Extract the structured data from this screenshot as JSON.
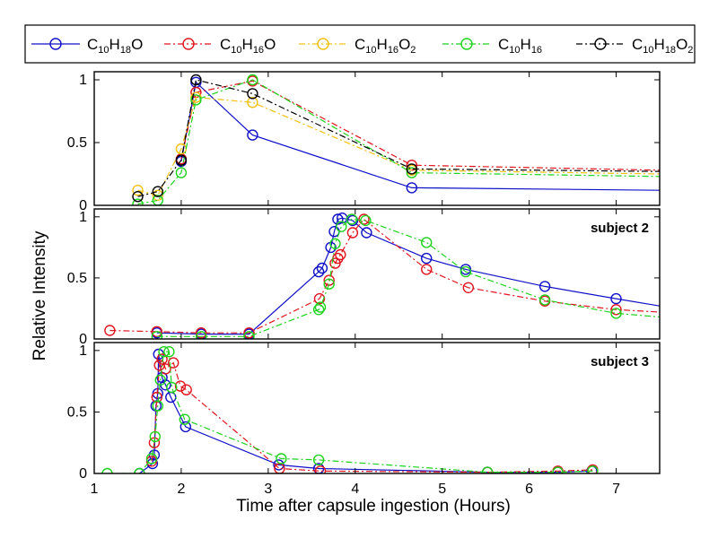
{
  "chart_data": {
    "type": "line",
    "xlabel": "Time after capsule ingestion (Hours)",
    "ylabel": "Relative Intensity",
    "xlim": [
      1,
      7.5
    ],
    "x_ticks": [
      1,
      2,
      3,
      4,
      5,
      6,
      7
    ],
    "ylim": [
      0,
      1.05
    ],
    "y_ticks": [
      0,
      0.5,
      1
    ],
    "grid": false,
    "legend_position": "top",
    "series_styles": [
      {
        "name": "C10H18O",
        "base": "C",
        "subs": [
          [
            "",
            "C"
          ],
          [
            "10",
            "sub"
          ],
          [
            "H",
            "n"
          ],
          [
            "18",
            "sub"
          ],
          [
            "O",
            "n"
          ]
        ],
        "color": "#1010c8",
        "dash": "solid"
      },
      {
        "name": "C10H16O",
        "subs": [
          [
            "C",
            "n"
          ],
          [
            "10",
            "sub"
          ],
          [
            "H",
            "n"
          ],
          [
            "16",
            "sub"
          ],
          [
            "O",
            "n"
          ]
        ],
        "color": "#e0141e",
        "dash": "dashdot"
      },
      {
        "name": "C10H16O2",
        "subs": [
          [
            "C",
            "n"
          ],
          [
            "10",
            "sub"
          ],
          [
            "H",
            "n"
          ],
          [
            "16",
            "sub"
          ],
          [
            "O",
            "n"
          ],
          [
            "2",
            "sub"
          ]
        ],
        "color": "#f2c010",
        "dash": "dashdot"
      },
      {
        "name": "C10H16",
        "subs": [
          [
            "C",
            "n"
          ],
          [
            "10",
            "sub"
          ],
          [
            "H",
            "n"
          ],
          [
            "16",
            "sub"
          ]
        ],
        "color": "#1ed21e",
        "dash": "dashdot"
      },
      {
        "name": "C10H18O2",
        "subs": [
          [
            "C",
            "n"
          ],
          [
            "10",
            "sub"
          ],
          [
            "H",
            "n"
          ],
          [
            "18",
            "sub"
          ],
          [
            "O",
            "n"
          ],
          [
            "2",
            "sub"
          ]
        ],
        "color": "#000000",
        "dash": "dashdot"
      }
    ],
    "panels": [
      {
        "annotation": "",
        "series": [
          {
            "name": "C10H18O",
            "points": [
              [
                2.0,
                0.35
              ],
              [
                2.17,
                0.98
              ],
              [
                2.82,
                0.56
              ],
              [
                4.65,
                0.14
              ],
              [
                7.5,
                0.12
              ]
            ]
          },
          {
            "name": "C10H16O",
            "points": [
              [
                2.0,
                0.37
              ],
              [
                2.17,
                0.9
              ],
              [
                2.82,
                0.99
              ],
              [
                4.65,
                0.32
              ],
              [
                7.5,
                0.28
              ]
            ]
          },
          {
            "name": "C10H16O2",
            "points": [
              [
                1.5,
                0.12
              ],
              [
                1.73,
                0.08
              ],
              [
                2.0,
                0.45
              ],
              [
                2.17,
                0.86
              ],
              [
                2.82,
                0.82
              ],
              [
                4.65,
                0.28
              ],
              [
                7.5,
                0.25
              ]
            ]
          },
          {
            "name": "C10H16",
            "points": [
              [
                1.5,
                0.01
              ],
              [
                1.73,
                0.04
              ],
              [
                2.0,
                0.26
              ],
              [
                2.17,
                0.84
              ],
              [
                2.82,
                1.0
              ],
              [
                4.65,
                0.26
              ],
              [
                7.5,
                0.23
              ]
            ]
          },
          {
            "name": "C10H18O2",
            "points": [
              [
                1.5,
                0.07
              ],
              [
                1.73,
                0.11
              ],
              [
                2.0,
                0.36
              ],
              [
                2.17,
                1.0
              ],
              [
                2.82,
                0.89
              ],
              [
                4.65,
                0.29
              ],
              [
                7.5,
                0.27
              ]
            ]
          }
        ]
      },
      {
        "annotation": "subject 2",
        "series": [
          {
            "name": "C10H18O",
            "points": [
              [
                1.72,
                0.05
              ],
              [
                2.23,
                0.04
              ],
              [
                2.78,
                0.04
              ],
              [
                3.58,
                0.55
              ],
              [
                3.62,
                0.58
              ],
              [
                3.72,
                0.75
              ],
              [
                3.76,
                0.88
              ],
              [
                3.8,
                0.98
              ],
              [
                3.85,
                0.99
              ],
              [
                3.97,
                0.97
              ],
              [
                4.13,
                0.87
              ],
              [
                4.82,
                0.66
              ],
              [
                5.27,
                0.57
              ],
              [
                6.18,
                0.43
              ],
              [
                7.0,
                0.33
              ],
              [
                7.5,
                0.27
              ]
            ]
          },
          {
            "name": "C10H16O",
            "points": [
              [
                1.18,
                0.07
              ],
              [
                1.72,
                0.06
              ],
              [
                2.23,
                0.05
              ],
              [
                2.78,
                0.05
              ],
              [
                3.59,
                0.33
              ],
              [
                3.7,
                0.48
              ],
              [
                3.77,
                0.62
              ],
              [
                3.8,
                0.66
              ],
              [
                3.83,
                0.69
              ],
              [
                3.97,
                0.87
              ],
              [
                4.1,
                0.98
              ],
              [
                4.82,
                0.57
              ],
              [
                5.3,
                0.42
              ],
              [
                6.18,
                0.31
              ],
              [
                7.0,
                0.24
              ],
              [
                7.5,
                0.22
              ]
            ]
          },
          {
            "name": "C10H16",
            "points": [
              [
                1.72,
                0.02
              ],
              [
                2.23,
                0.02
              ],
              [
                2.78,
                0.02
              ],
              [
                3.58,
                0.24
              ],
              [
                3.6,
                0.26
              ],
              [
                3.7,
                0.45
              ],
              [
                3.77,
                0.78
              ],
              [
                3.84,
                0.92
              ],
              [
                3.96,
                0.98
              ],
              [
                4.12,
                0.97
              ],
              [
                4.82,
                0.79
              ],
              [
                5.27,
                0.55
              ],
              [
                6.18,
                0.32
              ],
              [
                7.0,
                0.21
              ],
              [
                7.5,
                0.18
              ]
            ]
          }
        ]
      },
      {
        "annotation": "subject 3",
        "series": [
          {
            "name": "C10H18O",
            "points": [
              [
                1.52,
                0.0
              ],
              [
                1.67,
                0.08
              ],
              [
                1.69,
                0.15
              ],
              [
                1.71,
                0.55
              ],
              [
                1.73,
                0.65
              ],
              [
                1.74,
                0.97
              ],
              [
                1.78,
                0.78
              ],
              [
                1.82,
                0.72
              ],
              [
                1.88,
                0.62
              ],
              [
                2.05,
                0.38
              ],
              [
                3.12,
                0.07
              ],
              [
                3.58,
                0.04
              ],
              [
                5.52,
                0.01
              ],
              [
                6.33,
                0.01
              ],
              [
                6.72,
                0.02
              ]
            ]
          },
          {
            "name": "C10H16O",
            "points": [
              [
                1.66,
                0.1
              ],
              [
                1.69,
                0.25
              ],
              [
                1.72,
                0.62
              ],
              [
                1.75,
                0.88
              ],
              [
                1.78,
                0.93
              ],
              [
                1.82,
                0.85
              ],
              [
                1.91,
                0.9
              ],
              [
                1.99,
                0.71
              ],
              [
                2.06,
                0.68
              ],
              [
                3.13,
                0.04
              ],
              [
                3.6,
                0.02
              ],
              [
                5.52,
                0.01
              ],
              [
                6.33,
                0.02
              ],
              [
                6.73,
                0.03
              ]
            ]
          },
          {
            "name": "C10H16",
            "points": [
              [
                1.15,
                0.0
              ],
              [
                1.52,
                0.0
              ],
              [
                1.66,
                0.12
              ],
              [
                1.7,
                0.3
              ],
              [
                1.73,
                0.55
              ],
              [
                1.76,
                0.76
              ],
              [
                1.8,
                0.99
              ],
              [
                1.86,
                0.99
              ],
              [
                1.89,
                0.7
              ],
              [
                2.04,
                0.44
              ],
              [
                3.15,
                0.12
              ],
              [
                3.58,
                0.11
              ],
              [
                5.52,
                0.01
              ],
              [
                6.33,
                0.01
              ],
              [
                6.73,
                0.02
              ]
            ]
          }
        ]
      }
    ]
  }
}
